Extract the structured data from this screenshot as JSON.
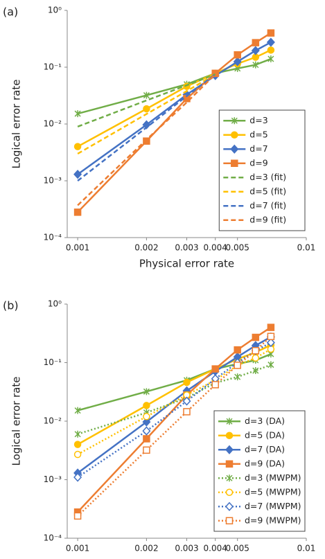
{
  "chart_data": [
    {
      "type": "line",
      "panel_label": "(a)",
      "x_label": "Physical error rate",
      "y_label": "Logical error rate",
      "log_x": true,
      "log_y": true,
      "grid": false,
      "legend": "lower right",
      "xlim": [
        0.0009,
        0.01
      ],
      "xticks": [
        0.001,
        0.002,
        0.003,
        0.004,
        0.005,
        0.01
      ],
      "ylim": [
        0.0001,
        1
      ],
      "yticks": [
        {
          "value": 0.0001,
          "label": "10⁻⁴"
        },
        {
          "value": 0.001,
          "label": "10⁻³"
        },
        {
          "value": 0.01,
          "label": "10⁻²"
        },
        {
          "value": 0.1,
          "label": "10⁻¹"
        },
        {
          "value": 1,
          "label": "10⁰"
        }
      ],
      "x": [
        0.001,
        0.002,
        0.003,
        0.004,
        0.005,
        0.006,
        0.007
      ],
      "series": [
        {
          "name": "d=3",
          "color": "#70ad47",
          "marker": "star",
          "filled": true,
          "dash": "solid",
          "values": [
            0.0152,
            0.032,
            0.05,
            0.078,
            0.095,
            0.11,
            0.14
          ]
        },
        {
          "name": "d=5",
          "color": "#ffc000",
          "marker": "circle",
          "filled": true,
          "dash": "solid",
          "values": [
            0.004,
            0.0185,
            0.046,
            0.078,
            0.115,
            0.15,
            0.2
          ]
        },
        {
          "name": "d=7",
          "color": "#4472c4",
          "marker": "diamond",
          "filled": true,
          "dash": "solid",
          "values": [
            0.0013,
            0.0097,
            0.033,
            0.071,
            0.125,
            0.196,
            0.275
          ]
        },
        {
          "name": "d=9",
          "color": "#ed7d31",
          "marker": "square",
          "filled": true,
          "dash": "solid",
          "values": [
            0.00028,
            0.005,
            0.028,
            0.078,
            0.165,
            0.27,
            0.4
          ]
        },
        {
          "name": "d=3 (fit)",
          "color": "#70ad47",
          "marker": "none",
          "dash": "dashed",
          "x": [
            0.001,
            0.002,
            0.003,
            0.004
          ],
          "values": [
            0.009,
            0.026,
            0.048,
            0.075
          ]
        },
        {
          "name": "d=5 (fit)",
          "color": "#ffc000",
          "marker": "none",
          "dash": "dashed",
          "x": [
            0.001,
            0.002,
            0.003,
            0.004
          ],
          "values": [
            0.003,
            0.015,
            0.038,
            0.075
          ]
        },
        {
          "name": "d=7 (fit)",
          "color": "#4472c4",
          "marker": "none",
          "dash": "dashed",
          "x": [
            0.001,
            0.002,
            0.003,
            0.004
          ],
          "values": [
            0.001,
            0.0087,
            0.031,
            0.075
          ]
        },
        {
          "name": "d=9 (fit)",
          "color": "#ed7d31",
          "marker": "none",
          "dash": "dashed",
          "x": [
            0.001,
            0.002,
            0.003,
            0.004
          ],
          "values": [
            0.00037,
            0.0053,
            0.024,
            0.075
          ]
        }
      ]
    },
    {
      "type": "line",
      "panel_label": "(b)",
      "x_label": "Physical error rate",
      "y_label": "Logical error rate",
      "log_x": true,
      "log_y": true,
      "grid": false,
      "legend": "lower right",
      "xlim": [
        0.0009,
        0.01
      ],
      "xticks": [
        0.001,
        0.002,
        0.003,
        0.004,
        0.005,
        0.01
      ],
      "ylim": [
        0.0001,
        1
      ],
      "yticks": [
        {
          "value": 0.0001,
          "label": "10⁻⁴"
        },
        {
          "value": 0.001,
          "label": "10⁻³"
        },
        {
          "value": 0.01,
          "label": "10⁻²"
        },
        {
          "value": 0.1,
          "label": "10⁻¹"
        },
        {
          "value": 1,
          "label": "10⁰"
        }
      ],
      "x": [
        0.001,
        0.002,
        0.003,
        0.004,
        0.005,
        0.006,
        0.007
      ],
      "series": [
        {
          "name": "d=3 (DA)",
          "color": "#70ad47",
          "marker": "star",
          "filled": true,
          "dash": "solid",
          "values": [
            0.0152,
            0.032,
            0.05,
            0.078,
            0.095,
            0.11,
            0.14
          ]
        },
        {
          "name": "d=5 (DA)",
          "color": "#ffc000",
          "marker": "circle",
          "filled": true,
          "dash": "solid",
          "values": [
            0.004,
            0.0185,
            0.046,
            0.078,
            0.115,
            0.15,
            0.2
          ]
        },
        {
          "name": "d=7 (DA)",
          "color": "#4472c4",
          "marker": "diamond",
          "filled": true,
          "dash": "solid",
          "values": [
            0.0013,
            0.0097,
            0.033,
            0.071,
            0.125,
            0.196,
            0.275
          ]
        },
        {
          "name": "d=9 (DA)",
          "color": "#ed7d31",
          "marker": "square",
          "filled": true,
          "dash": "solid",
          "values": [
            0.00028,
            0.005,
            0.028,
            0.078,
            0.165,
            0.27,
            0.4
          ]
        },
        {
          "name": "d=3 (MWPM)",
          "color": "#70ad47",
          "marker": "star",
          "filled": false,
          "dash": "dotted",
          "values": [
            0.006,
            0.014,
            0.025,
            0.045,
            0.057,
            0.073,
            0.092
          ]
        },
        {
          "name": "d=5 (MWPM)",
          "color": "#ffc000",
          "marker": "circle",
          "filled": false,
          "dash": "dotted",
          "values": [
            0.0027,
            0.012,
            0.028,
            0.05,
            0.09,
            0.12,
            0.17
          ]
        },
        {
          "name": "d=7 (MWPM)",
          "color": "#4472c4",
          "marker": "diamond",
          "filled": false,
          "dash": "dotted",
          "values": [
            0.0011,
            0.0068,
            0.022,
            0.053,
            0.1,
            0.16,
            0.22
          ]
        },
        {
          "name": "d=9 (MWPM)",
          "color": "#ed7d31",
          "marker": "square",
          "filled": false,
          "dash": "dotted",
          "values": [
            0.00024,
            0.0032,
            0.0145,
            0.042,
            0.09,
            0.16,
            0.28
          ]
        }
      ]
    }
  ]
}
